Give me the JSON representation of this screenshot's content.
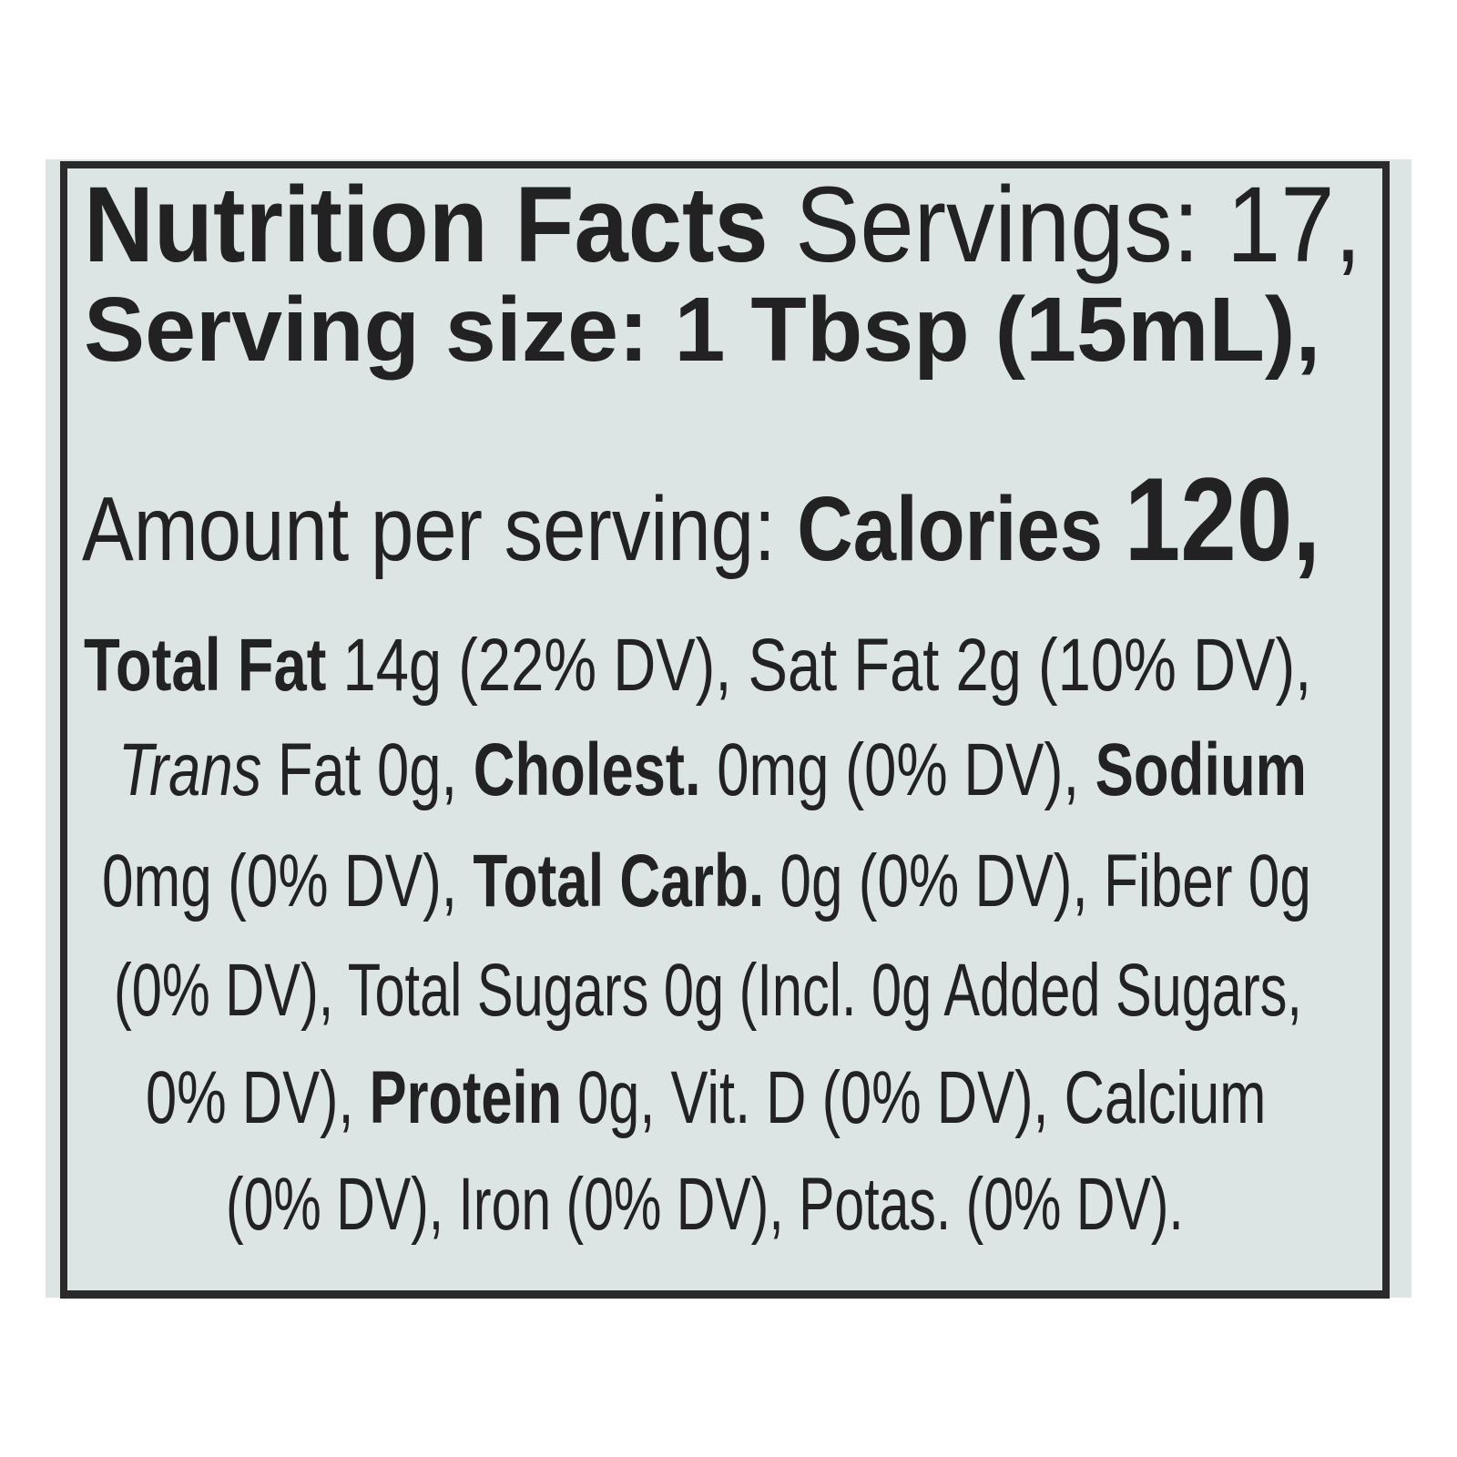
{
  "label": {
    "background": "#dde4e4",
    "ink": "#222222",
    "lines": [
      [
        {
          "t": "Nutrition Facts",
          "s": "b"
        },
        {
          "t": " Servings: 17,",
          "s": "r"
        }
      ],
      [
        {
          "t": "Serving size: 1 Tbsp (15mL),",
          "s": "b"
        }
      ],
      [
        {
          "t": "Amount per serving: ",
          "s": "r"
        },
        {
          "t": "Calories ",
          "s": "b"
        },
        {
          "t": "120,",
          "s": "b big"
        }
      ],
      [
        {
          "t": "Total Fat",
          "s": "b"
        },
        {
          "t": " 14g (22% DV), Sat Fat 2g (10% DV),",
          "s": "r"
        }
      ],
      [
        {
          "t": "Trans",
          "s": "i"
        },
        {
          "t": " Fat 0g, ",
          "s": "r"
        },
        {
          "t": "Cholest.",
          "s": "b"
        },
        {
          "t": " 0mg (0% DV), ",
          "s": "r"
        },
        {
          "t": "Sodium",
          "s": "b"
        }
      ],
      [
        {
          "t": "0mg (0% DV), ",
          "s": "r"
        },
        {
          "t": "Total Carb.",
          "s": "b"
        },
        {
          "t": " 0g (0% DV), Fiber 0g",
          "s": "r"
        }
      ],
      [
        {
          "t": "(0% DV), Total Sugars 0g (Incl. 0g Added Sugars,",
          "s": "r"
        }
      ],
      [
        {
          "t": "0% DV), ",
          "s": "r"
        },
        {
          "t": "Protein",
          "s": "b"
        },
        {
          "t": " 0g, Vit. D  (0% DV), Calcium",
          "s": "r"
        }
      ],
      [
        {
          "t": "(0% DV), Iron  (0% DV), Potas.  (0% DV).",
          "s": "r"
        }
      ]
    ]
  }
}
